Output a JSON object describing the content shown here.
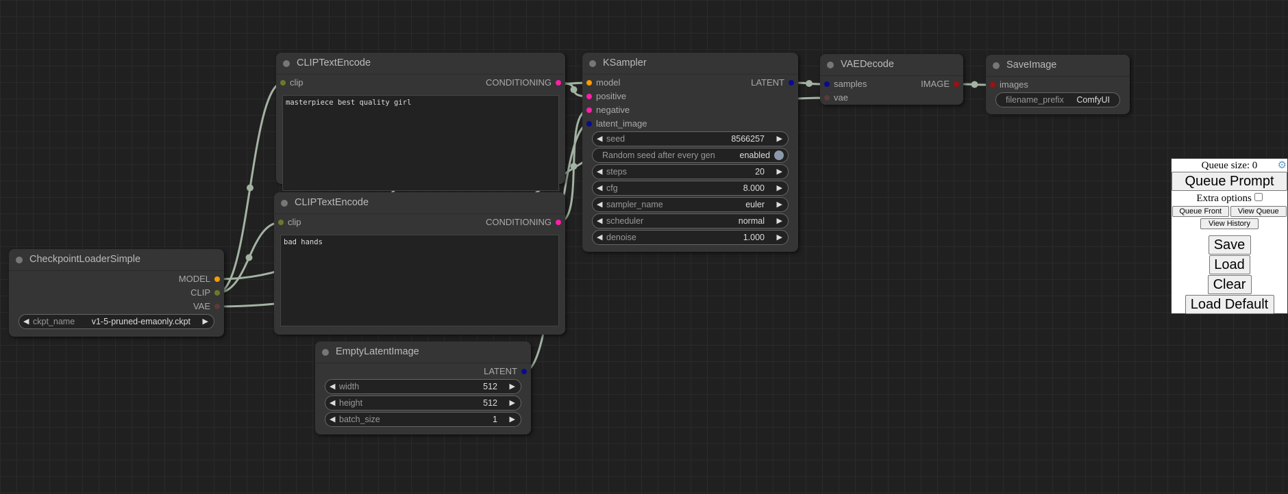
{
  "colors": {
    "link": "#a3b3a3",
    "MODEL": "#ff9a00",
    "CLIP": "#6b7a2a",
    "VAE": "#5a3a3a",
    "CONDITIONING": "#ff1fa8",
    "LATENT": "#0a0a90",
    "IMAGE": "#a01010"
  },
  "nodes": [
    {
      "id": "clip-text-encode-positive",
      "title": "CLIPTextEncode",
      "inputs": [
        {
          "name": "clip",
          "type": "CLIP"
        }
      ],
      "outputs": [
        {
          "name": "CONDITIONING",
          "type": "CONDITIONING"
        }
      ],
      "text": "masterpiece best quality girl",
      "widgets": []
    },
    {
      "id": "clip-text-encode-negative",
      "title": "CLIPTextEncode",
      "inputs": [
        {
          "name": "clip",
          "type": "CLIP"
        }
      ],
      "outputs": [
        {
          "name": "CONDITIONING",
          "type": "CONDITIONING"
        }
      ],
      "text": "bad hands",
      "widgets": []
    },
    {
      "id": "ksampler",
      "title": "KSampler",
      "inputs": [
        {
          "name": "model",
          "type": "MODEL"
        },
        {
          "name": "positive",
          "type": "CONDITIONING"
        },
        {
          "name": "negative",
          "type": "CONDITIONING"
        },
        {
          "name": "latent_image",
          "type": "LATENT"
        }
      ],
      "outputs": [
        {
          "name": "LATENT",
          "type": "LATENT"
        }
      ],
      "widgets": [
        {
          "name": "seed",
          "value": "8566257",
          "kind": "number"
        },
        {
          "name": "Random seed after every gen",
          "value": "enabled",
          "kind": "toggle"
        },
        {
          "name": "steps",
          "value": "20",
          "kind": "number"
        },
        {
          "name": "cfg",
          "value": "8.000",
          "kind": "number"
        },
        {
          "name": "sampler_name",
          "value": "euler",
          "kind": "combo"
        },
        {
          "name": "scheduler",
          "value": "normal",
          "kind": "combo"
        },
        {
          "name": "denoise",
          "value": "1.000",
          "kind": "number"
        }
      ]
    },
    {
      "id": "vae-decode",
      "title": "VAEDecode",
      "inputs": [
        {
          "name": "samples",
          "type": "LATENT"
        },
        {
          "name": "vae",
          "type": "VAE"
        }
      ],
      "outputs": [
        {
          "name": "IMAGE",
          "type": "IMAGE"
        }
      ],
      "widgets": []
    },
    {
      "id": "save-image",
      "title": "SaveImage",
      "inputs": [
        {
          "name": "images",
          "type": "IMAGE"
        }
      ],
      "outputs": [],
      "widgets": [
        {
          "name": "filename_prefix",
          "value": "ComfyUI",
          "kind": "text"
        }
      ]
    },
    {
      "id": "checkpoint-loader-simple",
      "title": "CheckpointLoaderSimple",
      "inputs": [],
      "outputs": [
        {
          "name": "MODEL",
          "type": "MODEL"
        },
        {
          "name": "CLIP",
          "type": "CLIP"
        },
        {
          "name": "VAE",
          "type": "VAE"
        }
      ],
      "widgets": [
        {
          "name": "ckpt_name",
          "value": "v1-5-pruned-emaonly.ckpt",
          "kind": "combo"
        }
      ]
    },
    {
      "id": "empty-latent-image",
      "title": "EmptyLatentImage",
      "inputs": [],
      "outputs": [
        {
          "name": "LATENT",
          "type": "LATENT"
        }
      ],
      "widgets": [
        {
          "name": "width",
          "value": "512",
          "kind": "number"
        },
        {
          "name": "height",
          "value": "512",
          "kind": "number"
        },
        {
          "name": "batch_size",
          "value": "1",
          "kind": "number"
        }
      ]
    }
  ],
  "queue_panel": {
    "queue_size": "Queue size: 0",
    "queue_prompt": "Queue Prompt",
    "extra_options": "Extra options",
    "queue_front": "Queue Front",
    "view_queue": "View Queue",
    "view_history": "View History",
    "save": "Save",
    "load": "Load",
    "clear": "Clear",
    "load_default": "Load Default",
    "settings_icon": "gear-icon"
  }
}
